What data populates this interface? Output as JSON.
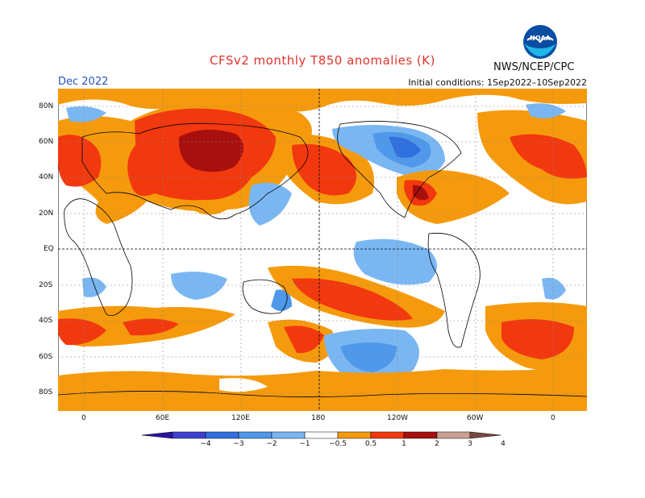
{
  "header": {
    "title": "CFSv2 monthly T850 anomalies (K)",
    "agency": "NWS/NCEP/CPC",
    "period": "Dec 2022",
    "initial_conditions": "Initial conditions: 1Sep2022–10Sep2022",
    "logo_text": "NOAA"
  },
  "map": {
    "lat_labels": [
      "80N",
      "60N",
      "40N",
      "20N",
      "EQ",
      "20S",
      "40S",
      "60S",
      "80S"
    ],
    "lon_labels": [
      "0",
      "60E",
      "120E",
      "180",
      "120W",
      "60W",
      "0"
    ]
  },
  "legend": {
    "labels": [
      "−4",
      "−3",
      "−2",
      "−1",
      "−0.5",
      "0.5",
      "1",
      "2",
      "3",
      "4"
    ],
    "colors": [
      "#2b14a0",
      "#3e3fd1",
      "#2f6fde",
      "#4f98ea",
      "#7ab7f2",
      "#ffffff",
      "#f59a0c",
      "#f2380e",
      "#a80f0f",
      "#c9a092",
      "#7a4a40"
    ]
  },
  "colors": {
    "orange": "#f59a0c",
    "red": "#f2380e",
    "darkred": "#a80f0f",
    "lightblue": "#7ab7f2",
    "blue": "#4f98ea",
    "midblue": "#2f6fde"
  }
}
